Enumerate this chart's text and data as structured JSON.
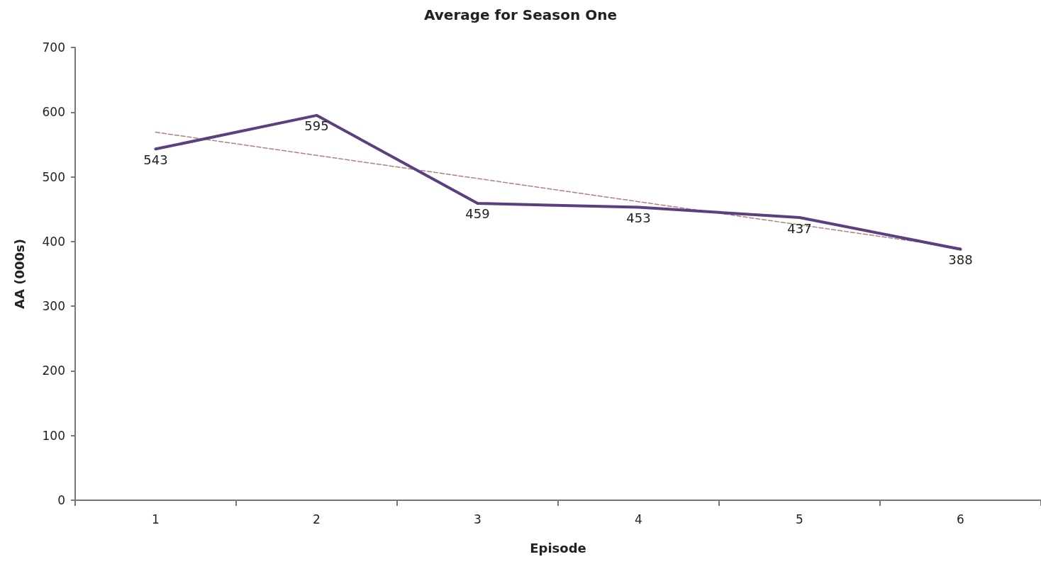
{
  "chart_data": {
    "type": "line",
    "title": "Average for Season One",
    "xlabel": "Episode",
    "ylabel": "AA (000s)",
    "categories": [
      "1",
      "2",
      "3",
      "4",
      "5",
      "6"
    ],
    "series": [
      {
        "color": "#5b3f7f",
        "values": [
          543,
          595,
          459,
          453,
          437,
          388
        ],
        "value_labels": [
          "543",
          "595",
          "459",
          "453",
          "437",
          "388"
        ],
        "line_style": "solid"
      },
      {
        "type": "line",
        "color": "#b08080",
        "x": [
          "1",
          "6"
        ],
        "values": [
          569,
          390
        ],
        "line_style": "dashed"
      }
    ],
    "ylim": [
      0,
      700
    ],
    "yticks": [
      0,
      100,
      200,
      300,
      400,
      500,
      600,
      700
    ],
    "grid": false,
    "marker": "none"
  }
}
